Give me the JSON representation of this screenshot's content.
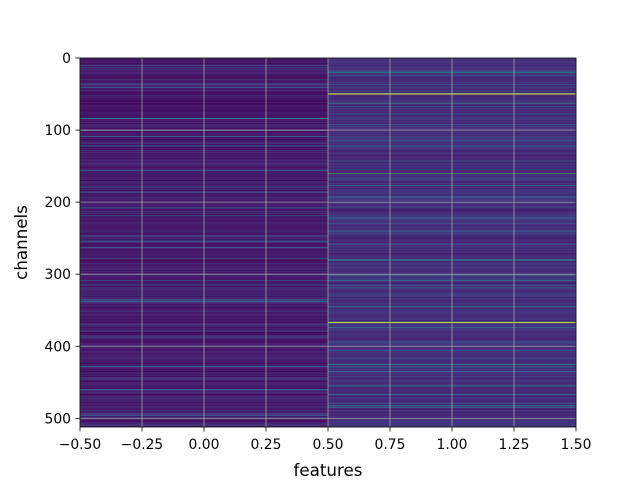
{
  "chart_data": {
    "type": "heatmap",
    "title": "",
    "xlabel": "features",
    "ylabel": "channels",
    "xlim": [
      -0.5,
      1.5
    ],
    "ylim": [
      512,
      0
    ],
    "y_inverted": true,
    "x_ticks": [
      -0.5,
      -0.25,
      0.0,
      0.25,
      0.5,
      0.75,
      1.0,
      1.25,
      1.5
    ],
    "x_tick_labels": [
      "−0.50",
      "−0.25",
      "0.00",
      "0.25",
      "0.50",
      "0.75",
      "1.00",
      "1.25",
      "1.50"
    ],
    "y_ticks": [
      0,
      100,
      200,
      300,
      400,
      500
    ],
    "y_tick_labels": [
      "0",
      "100",
      "200",
      "300",
      "400",
      "500"
    ],
    "grid": true,
    "colormap": "viridis",
    "columns": [
      {
        "feature": 0,
        "base_level": 0.08,
        "highlights": [
          {
            "channel": 84,
            "value": 0.45
          },
          {
            "channel": 186,
            "value": 0.3
          },
          {
            "channel": 218,
            "value": 0.35
          },
          {
            "channel": 278,
            "value": 0.4
          },
          {
            "channel": 338,
            "value": 0.35
          },
          {
            "channel": 352,
            "value": 0.3
          },
          {
            "channel": 460,
            "value": 0.3
          }
        ]
      },
      {
        "feature": 1,
        "base_level": 0.14,
        "highlights": [
          {
            "channel": 50,
            "value": 0.95
          },
          {
            "channel": 160,
            "value": 0.75
          },
          {
            "channel": 280,
            "value": 0.55
          },
          {
            "channel": 345,
            "value": 0.5
          },
          {
            "channel": 367,
            "value": 0.9
          },
          {
            "channel": 425,
            "value": 0.6
          },
          {
            "channel": 455,
            "value": 0.4
          },
          {
            "channel": 20,
            "value": 0.4
          },
          {
            "channel": 230,
            "value": 0.35
          }
        ]
      }
    ]
  }
}
